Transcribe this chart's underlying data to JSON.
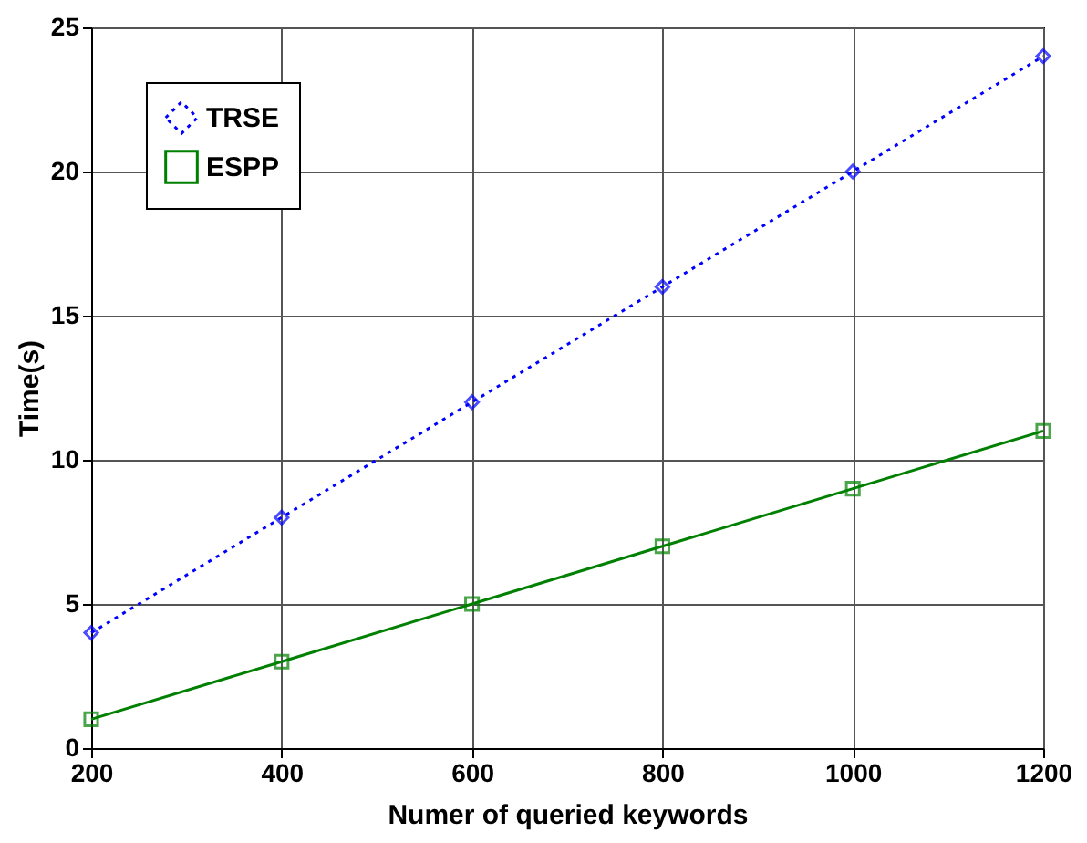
{
  "chart_data": {
    "type": "line",
    "xlabel": "Numer of queried keywords",
    "ylabel": "Time(s)",
    "x": [
      200,
      400,
      600,
      800,
      1000,
      1200
    ],
    "series": [
      {
        "name": "TRSE",
        "color": "#0000ff",
        "values": [
          4,
          8,
          12,
          16,
          20,
          24
        ],
        "marker": "diamond",
        "line_style": "dotted"
      },
      {
        "name": "ESPP",
        "color": "#008000",
        "values": [
          1,
          3,
          5,
          7,
          9,
          11
        ],
        "marker": "square",
        "line_style": "solid"
      }
    ],
    "xlim": [
      200,
      1200
    ],
    "xticks": [
      200,
      400,
      600,
      800,
      1000,
      1200
    ],
    "ylim": [
      0,
      25
    ],
    "yticks": [
      0,
      5,
      10,
      15,
      20,
      25
    ],
    "grid": true,
    "legend": "top left"
  }
}
